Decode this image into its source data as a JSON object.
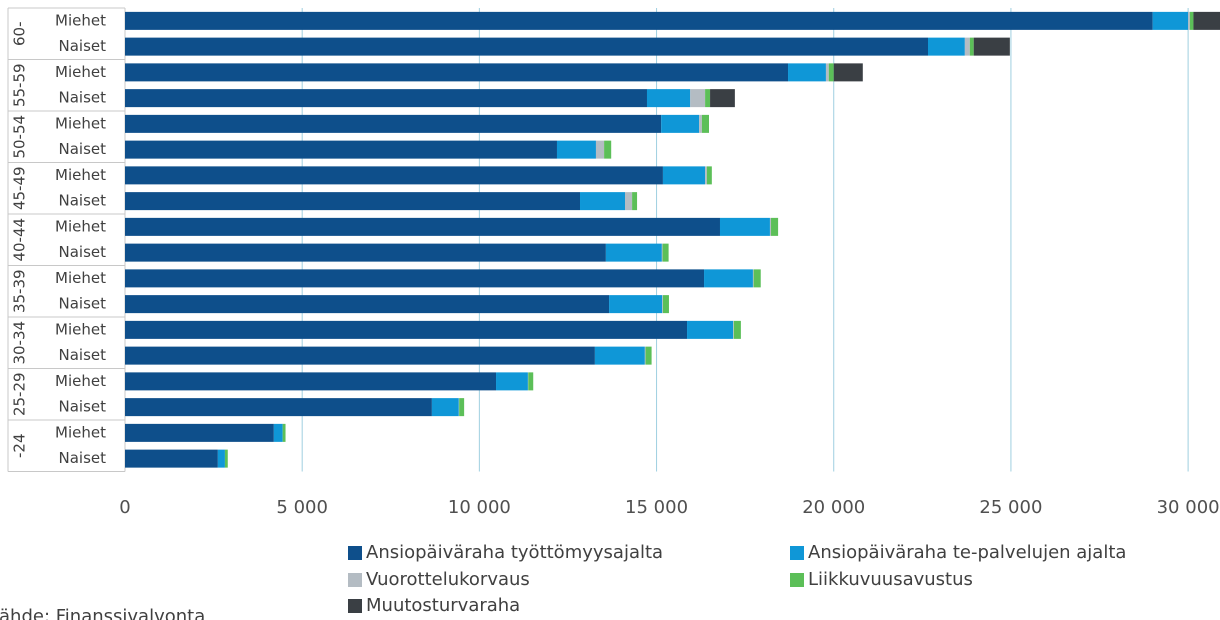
{
  "chart_data": {
    "type": "stacked-barh",
    "groups": [
      "60-",
      "55-59",
      "50-54",
      "45-49",
      "40-44",
      "35-39",
      "30-34",
      "25-29",
      "-24"
    ],
    "categories": [
      "Miehet",
      "Naiset",
      "Miehet",
      "Naiset",
      "Miehet",
      "Naiset",
      "Miehet",
      "Naiset",
      "Miehet",
      "Naiset",
      "Miehet",
      "Naiset",
      "Miehet",
      "Naiset",
      "Miehet",
      "Naiset",
      "Miehet",
      "Naiset"
    ],
    "series": [
      {
        "name": "Ansiopäiväraha työttömyysajalta",
        "color": "#0e4f8b",
        "values": [
          29000,
          22660,
          18710,
          14730,
          15130,
          12190,
          15180,
          12840,
          16790,
          13570,
          16340,
          13660,
          15860,
          13260,
          10470,
          8660,
          4200,
          2620
        ]
      },
      {
        "name": "Ansiopäiväraha te-palvelujen ajalta",
        "color": "#0f97d7",
        "values": [
          1000,
          1040,
          1070,
          1220,
          1070,
          1100,
          1190,
          1270,
          1410,
          1580,
          1380,
          1500,
          1300,
          1410,
          900,
          760,
          250,
          200
        ]
      },
      {
        "name": "Vuorottelukorvaus",
        "color": "#b4bcc3",
        "values": [
          50,
          140,
          80,
          420,
          80,
          230,
          50,
          200,
          30,
          20,
          20,
          20,
          20,
          20,
          10,
          10,
          0,
          0
        ]
      },
      {
        "name": "Liikkuvuusavustus",
        "color": "#5cbf58",
        "values": [
          100,
          110,
          140,
          140,
          200,
          200,
          140,
          140,
          200,
          170,
          200,
          170,
          200,
          170,
          140,
          140,
          80,
          80
        ]
      },
      {
        "name": "Muutosturvaraha",
        "color": "#3a3f44",
        "values": [
          750,
          1020,
          820,
          700,
          0,
          0,
          0,
          0,
          0,
          0,
          0,
          0,
          0,
          0,
          0,
          0,
          0,
          0
        ]
      }
    ],
    "xlim": [
      0,
      30900
    ],
    "xticks": [
      0,
      {
        "value": 5000,
        "label": "5 000"
      },
      {
        "value": 10000,
        "label": "10 000"
      },
      {
        "value": 15000,
        "label": "15 000"
      },
      {
        "value": 20000,
        "label": "20 000"
      },
      {
        "value": 25000,
        "label": "25 000"
      },
      {
        "value": 30000,
        "label": "30 000"
      }
    ],
    "grid": true,
    "source": "Lähde: Finanssivalvonta"
  }
}
